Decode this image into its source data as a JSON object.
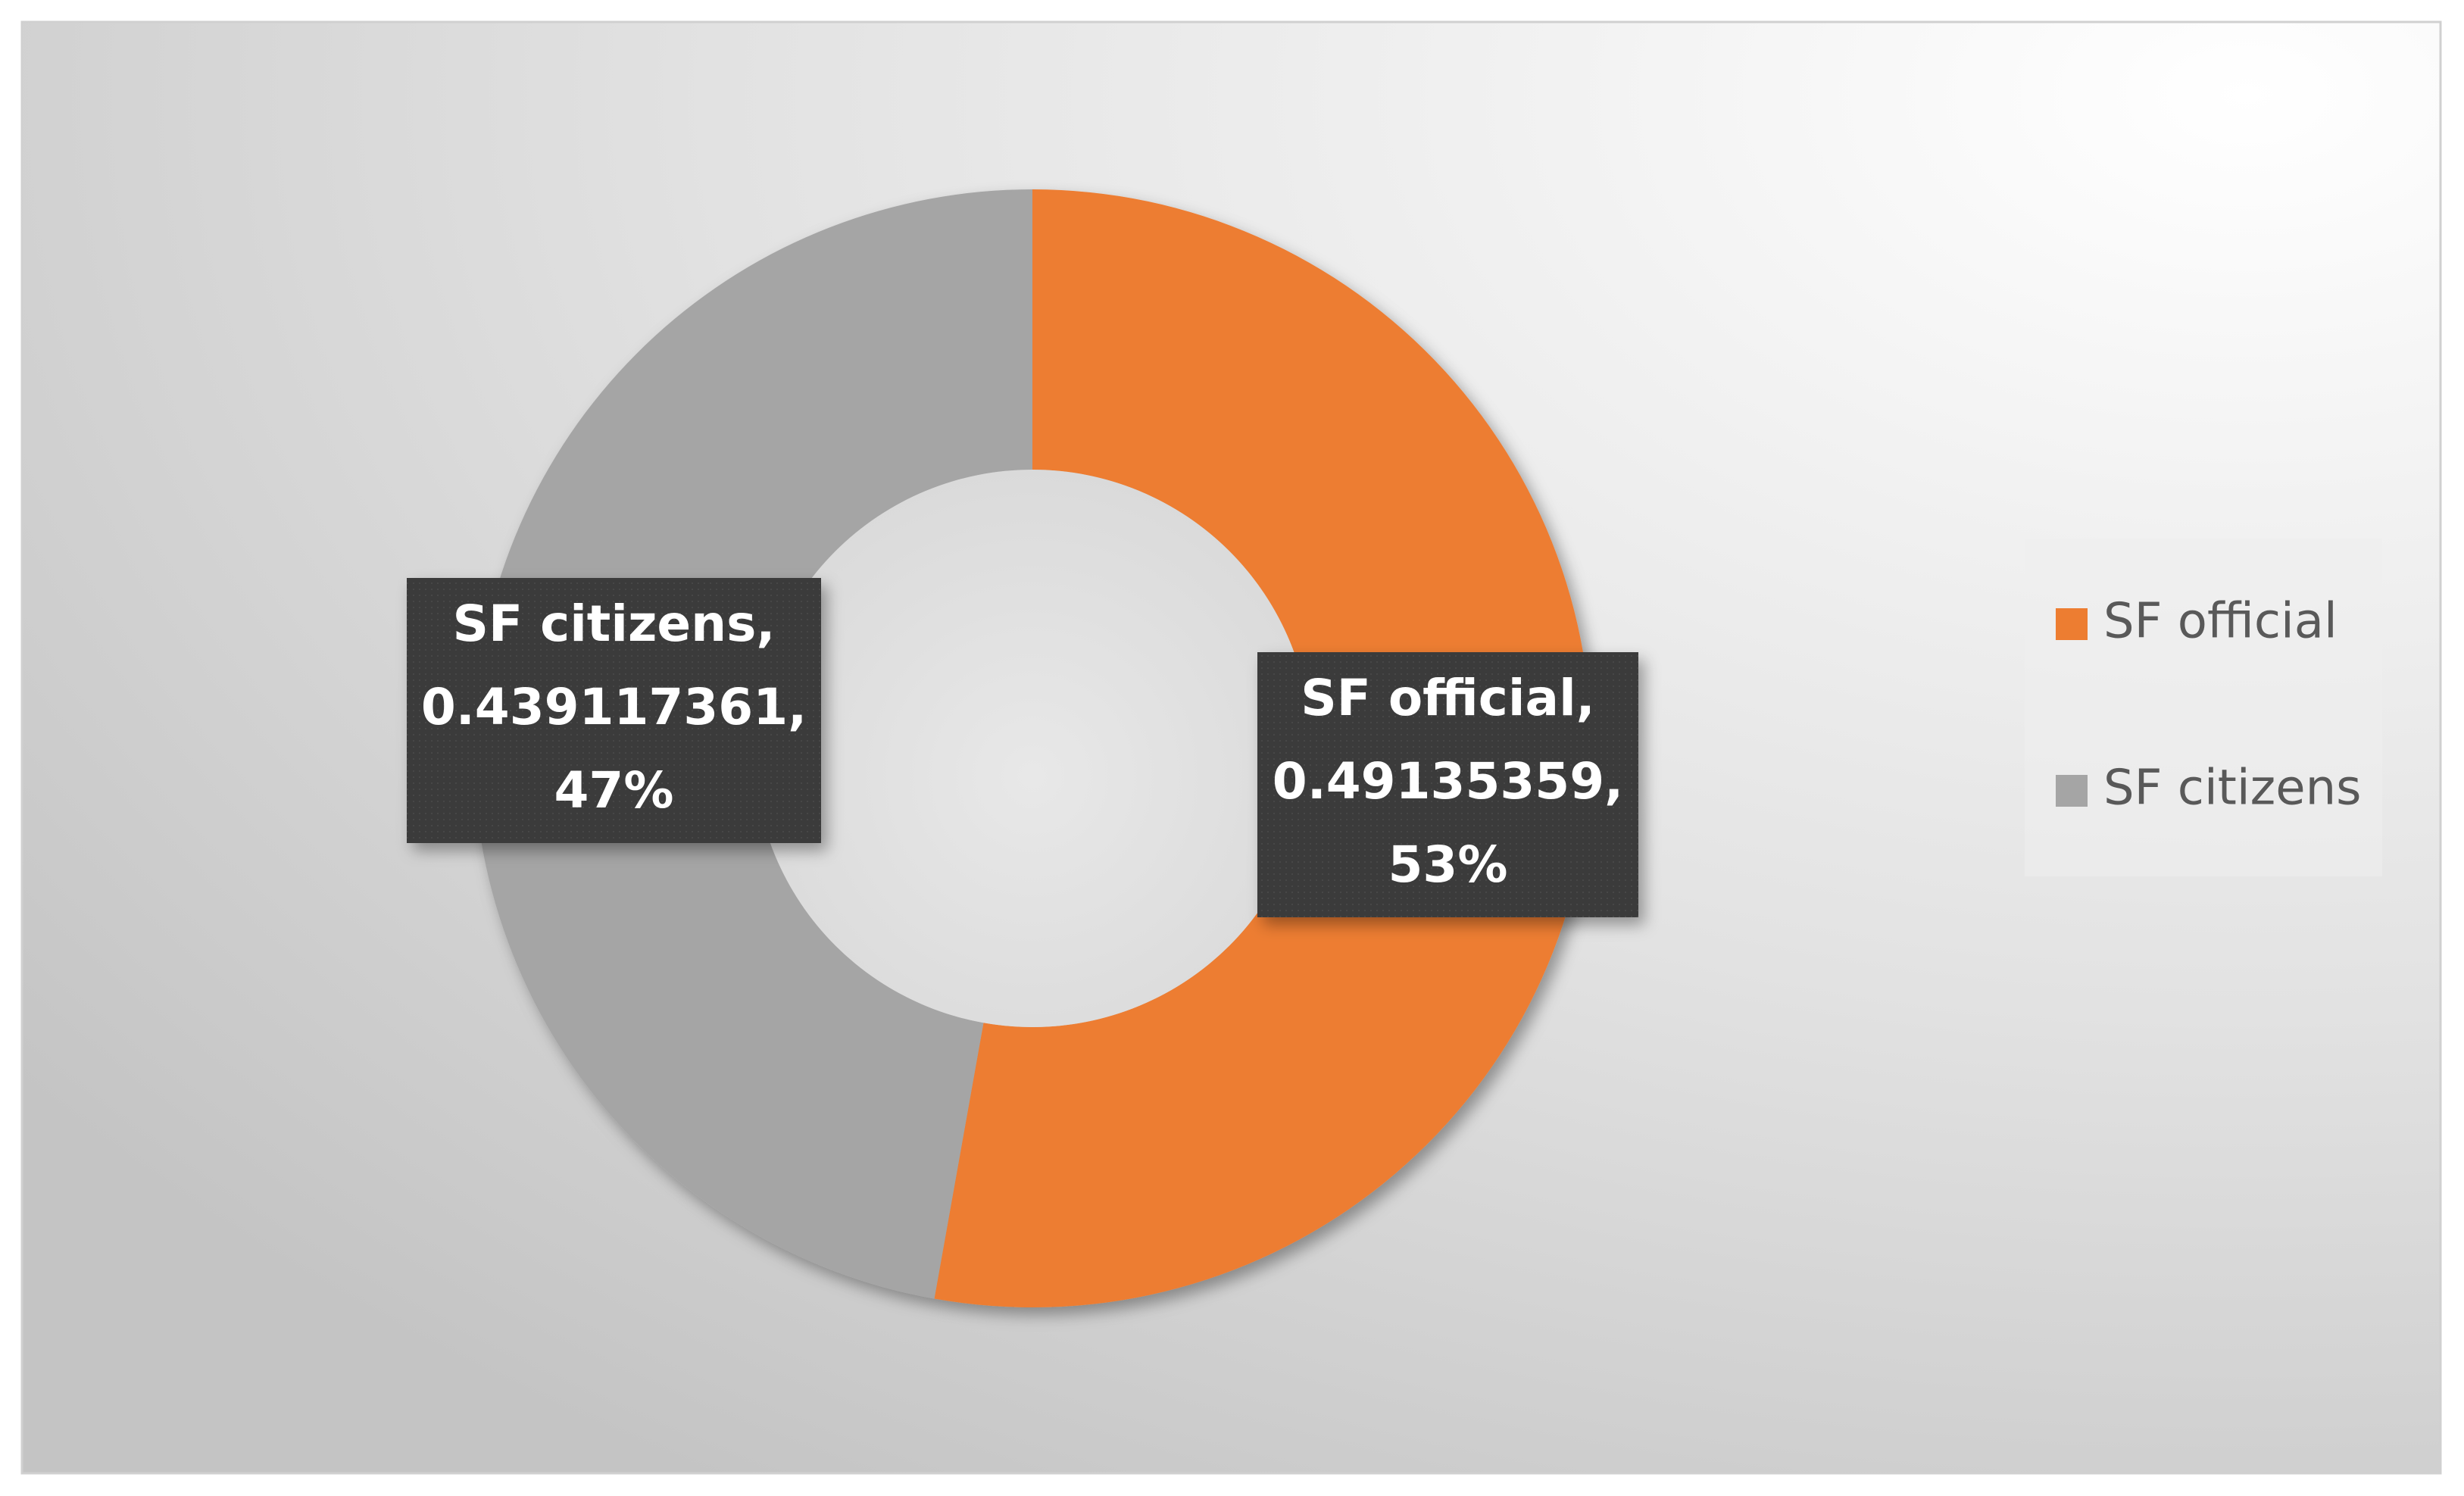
{
  "chart_data": {
    "type": "donut",
    "categories": [
      "SF official",
      "SF citizens"
    ],
    "values": [
      0.49135359,
      0.439117361
    ],
    "value_labels": [
      [
        "SF official,",
        "0.49135359,",
        "53%"
      ],
      [
        "SF citizens,",
        "0.439117361,",
        "47%"
      ]
    ],
    "colors": [
      "#ed7d31",
      "#a5a5a5"
    ],
    "legend": "right"
  }
}
